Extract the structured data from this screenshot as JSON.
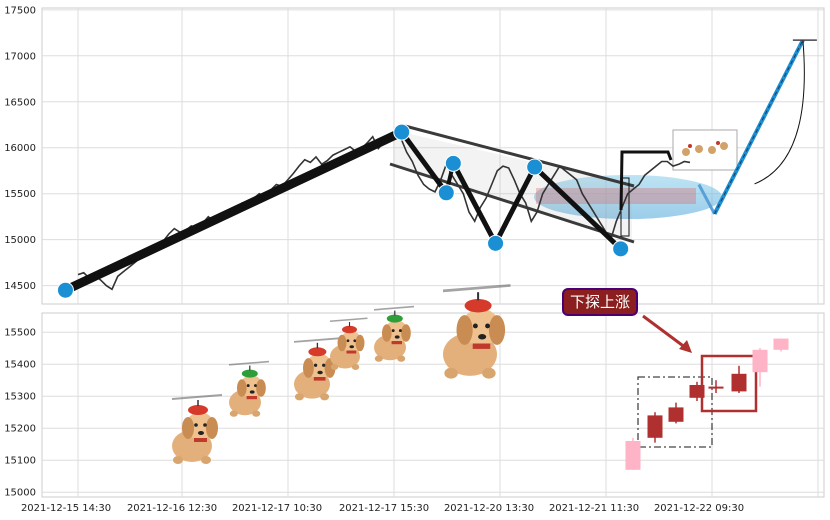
{
  "chart_data": [
    {
      "type": "line",
      "name": "upper-price-panel",
      "ylim": [
        14300,
        17520
      ],
      "yticks": [
        14500,
        15000,
        15500,
        16000,
        16500,
        17000,
        17500
      ],
      "yticks_label": [
        "14500",
        "15000",
        "15500",
        "16000",
        "16500",
        "17000",
        "17500"
      ],
      "grid": true,
      "series": [
        {
          "values": [
            14620,
            14640,
            14580,
            14610,
            14560,
            14500,
            14460,
            14600,
            14650,
            14700,
            14750,
            14800,
            14880,
            14920,
            14900,
            14980,
            15060,
            15120,
            15080,
            15100,
            15150,
            15130,
            15180,
            15250,
            15200,
            15230,
            15310,
            15280,
            15350,
            15400,
            15380,
            15450,
            15500,
            15470,
            15540,
            15600,
            15580,
            15650,
            15720,
            15800,
            15870,
            15840,
            15900,
            15820,
            15860,
            15920,
            15950,
            15980,
            16010,
            15960,
            15990,
            16050,
            16120,
            15990,
            16060,
            16150,
            16170,
            16100,
            15950,
            15850,
            15700,
            15600,
            15550,
            15520,
            15650,
            15820,
            15700,
            15600,
            15500,
            15300,
            15200,
            15350,
            15450,
            15600,
            15750,
            15800,
            15780,
            15650,
            15500,
            15400,
            15200,
            15300,
            15500,
            15600,
            15700,
            15800,
            15750,
            15700,
            15650,
            15500,
            15400,
            15300,
            15200,
            15100,
            15000,
            15200,
            15350,
            15500,
            15550,
            15600,
            15700,
            15750,
            15800,
            15850,
            15850,
            15800,
            15820,
            15850,
            15840
          ]
        }
      ],
      "turning_points": [
        {
          "x": 0.03,
          "y": 14450
        },
        {
          "x": 0.46,
          "y": 16170
        },
        {
          "x": 0.517,
          "y": 15510
        },
        {
          "x": 0.526,
          "y": 15830
        },
        {
          "x": 0.58,
          "y": 14960
        },
        {
          "x": 0.63,
          "y": 15790
        },
        {
          "x": 0.74,
          "y": 14900
        }
      ],
      "projection": [
        {
          "x": 0.84,
          "y": 15600
        },
        {
          "x": 0.86,
          "y": 15280
        },
        {
          "x": 0.973,
          "y": 17170
        }
      ]
    },
    {
      "type": "candlestick",
      "name": "lower-candle-panel",
      "ylim": [
        14985,
        15560
      ],
      "yticks": [
        15000,
        15100,
        15200,
        15300,
        15400,
        15500
      ],
      "yticks_label": [
        "15000",
        "15100",
        "15200",
        "15300",
        "15400",
        "15500"
      ],
      "xticks_label": [
        "2021-12-15 14:30",
        "2021-12-16 12:30",
        "2021-12-17 10:30",
        "2021-12-17 15:30",
        "2021-12-20 13:30",
        "2021-12-21 11:30",
        "2021-12-22 09:30"
      ],
      "grid": true,
      "candles": [
        {
          "open": 15070,
          "close": 15160,
          "high": 15170,
          "low": 15070,
          "color": "#ffb3c6"
        },
        {
          "open": 15240,
          "close": 15170,
          "high": 15250,
          "low": 15155,
          "color": "#b03030"
        },
        {
          "open": 15220,
          "close": 15265,
          "high": 15280,
          "low": 15215,
          "color": "#b03030"
        },
        {
          "open": 15295,
          "close": 15335,
          "high": 15345,
          "low": 15285,
          "color": "#b03030"
        },
        {
          "open": 15330,
          "close": 15330,
          "high": 15350,
          "low": 15310,
          "color": "#b03030"
        },
        {
          "open": 15315,
          "close": 15370,
          "high": 15395,
          "low": 15310,
          "color": "#b03030"
        },
        {
          "open": 15375,
          "close": 15445,
          "high": 15450,
          "low": 15330,
          "color": "#ffb3c6"
        },
        {
          "open": 15445,
          "close": 15480,
          "high": 15480,
          "low": 15440,
          "color": "#ffb3c6"
        }
      ],
      "annotation": {
        "text": "下探上涨",
        "bg": "#8b1e1e",
        "border": "#4a0072"
      }
    }
  ]
}
